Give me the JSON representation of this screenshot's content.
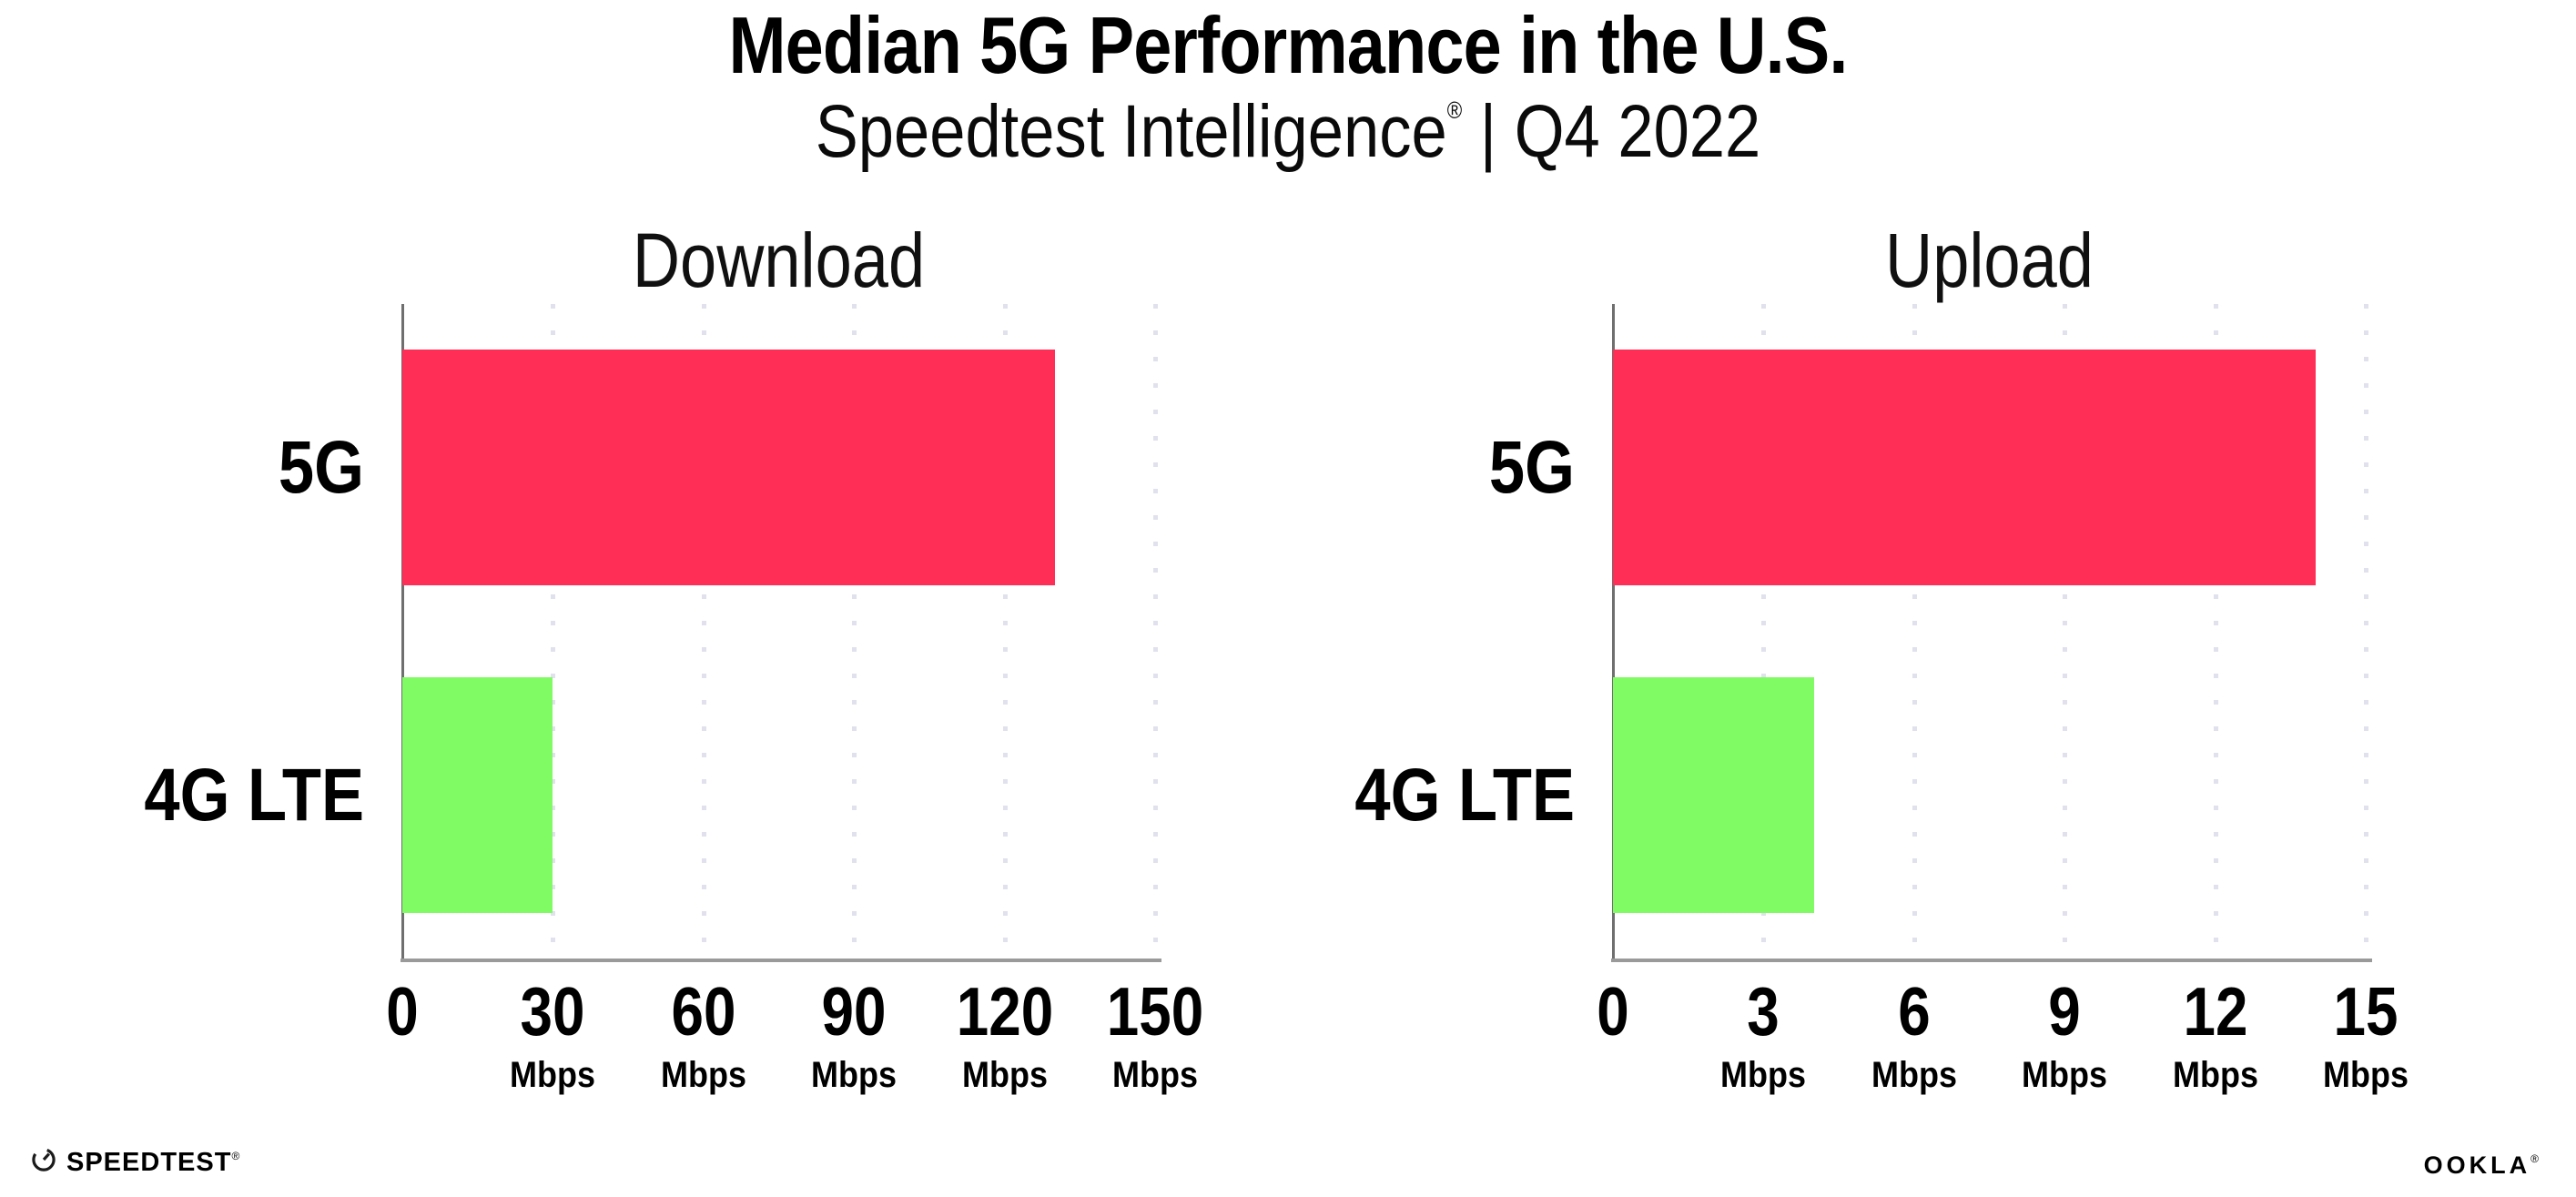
{
  "header": {
    "title": "Median 5G Performance in the U.S.",
    "subtitle_product": "Speedtest Intelligence",
    "subtitle_reg": "®",
    "subtitle_rest": " | Q4 2022"
  },
  "chart_data": [
    {
      "type": "bar",
      "orientation": "horizontal",
      "title": "Download",
      "categories": [
        "5G",
        "4G LTE"
      ],
      "values": [
        130,
        30
      ],
      "unit": "Mbps",
      "xlim": [
        0,
        150
      ],
      "xticks": [
        0,
        30,
        60,
        90,
        120,
        150
      ],
      "bar_colors": [
        "#ff2e56",
        "#81fb64"
      ],
      "grid": "dotted-vertical-gridlines",
      "legend": "none",
      "xlabel": "",
      "ylabel": ""
    },
    {
      "type": "bar",
      "orientation": "horizontal",
      "title": "Upload",
      "categories": [
        "5G",
        "4G LTE"
      ],
      "values": [
        14,
        4
      ],
      "unit": "Mbps",
      "xlim": [
        0,
        15
      ],
      "xticks": [
        0,
        3,
        6,
        9,
        12,
        15
      ],
      "bar_colors": [
        "#ff2e56",
        "#81fb64"
      ],
      "grid": "dotted-vertical-gridlines",
      "legend": "none",
      "xlabel": "",
      "ylabel": ""
    }
  ],
  "footer": {
    "speedtest_label": "SPEEDTEST",
    "speedtest_mark": "®",
    "ookla_label": "OOKLA",
    "ookla_mark": "®"
  },
  "colors": {
    "bar_5g": "#ff2e56",
    "bar_4g_lte": "#81fb64",
    "axis_line": "#9a9a9a",
    "gridline": "#e0e1ec",
    "text": "#000000",
    "background": "#ffffff"
  }
}
